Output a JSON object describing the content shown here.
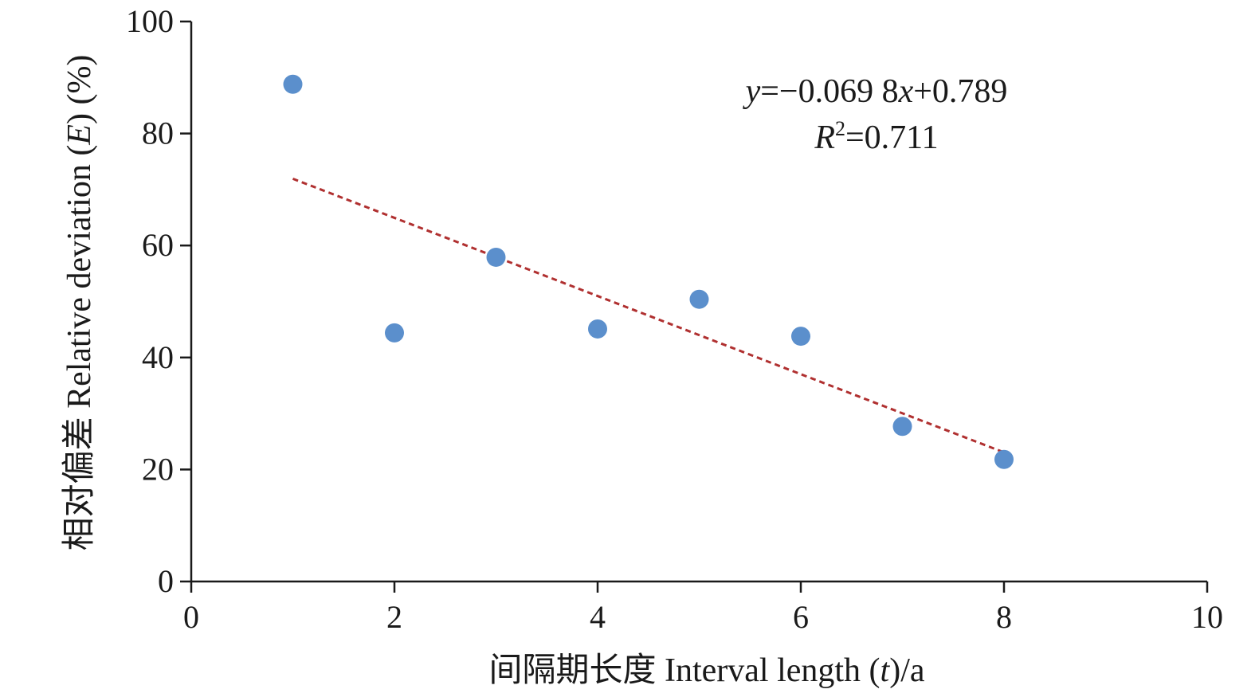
{
  "chart_data": {
    "type": "scatter",
    "title": "",
    "xlabel": "间隔期长度 Interval length (t)/a",
    "xlabel_parts": {
      "cn": "间隔期长度 Interval length (",
      "var": "t",
      "end": ")/a"
    },
    "ylabel": "相对偏差 Relative deviation (E) (%)",
    "ylabel_parts": {
      "cn": "相对偏差 Relative deviation (",
      "var": "E",
      "end": ") (%)"
    },
    "xlim": [
      0,
      10
    ],
    "ylim": [
      0,
      100
    ],
    "xticks": [
      "0",
      "2",
      "4",
      "6",
      "8",
      "10"
    ],
    "yticks": [
      "0",
      "20",
      "40",
      "60",
      "80",
      "100"
    ],
    "grid": false,
    "series": [
      {
        "name": "Relative deviation",
        "color": "#5b8fcc",
        "x": [
          1,
          2,
          3,
          4,
          5,
          6,
          7,
          8
        ],
        "y": [
          88.8,
          44.4,
          57.9,
          45.1,
          50.4,
          43.8,
          27.7,
          21.8
        ]
      }
    ],
    "trendline": {
      "type": "linear",
      "color": "#b03030",
      "style": "dashed",
      "slope": -6.98,
      "intercept": 78.9,
      "x_range": [
        1,
        8
      ]
    },
    "annotations": {
      "equation": {
        "y": "y",
        "a": "=−0.069 8",
        "x": "x",
        "b": "+0.789"
      },
      "r2": {
        "r": "R",
        "sup": "2",
        "val": "=0.711"
      }
    }
  }
}
